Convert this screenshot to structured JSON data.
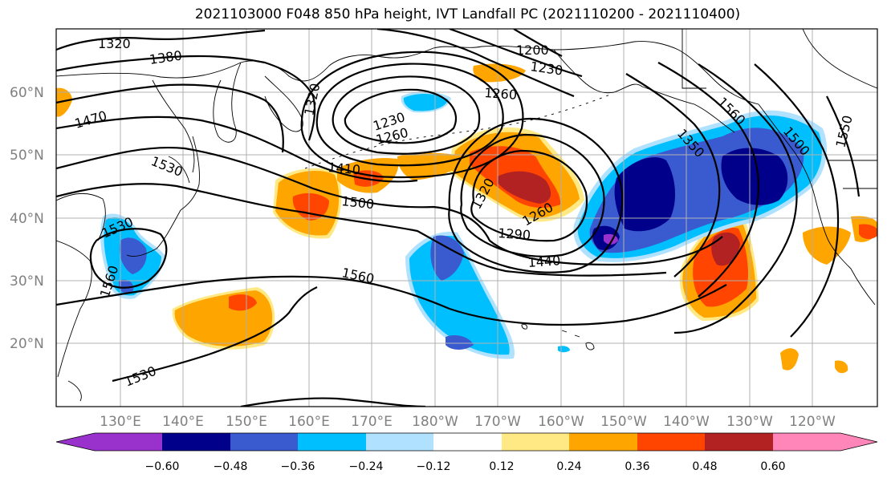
{
  "title": "2021103000 F048 850 hPa height, IVT Landfall PC (2021110200 - 2021110400)",
  "lat_labels": [
    "60°N",
    "50°N",
    "40°N",
    "30°N",
    "20°N"
  ],
  "lon_labels": [
    "130°E",
    "140°E",
    "150°E",
    "160°E",
    "170°E",
    "180°W",
    "170°W",
    "160°W",
    "150°W",
    "140°W",
    "130°W",
    "120°W"
  ],
  "colorbar": {
    "ticks": [
      "−0.60",
      "−0.48",
      "−0.36",
      "−0.24",
      "−0.12",
      "0.12",
      "0.24",
      "0.36",
      "0.48",
      "0.60"
    ],
    "colors": [
      "#9932cc",
      "#00008b",
      "#3a5bd0",
      "#00bfff",
      "#b0e2ff",
      "#ffffff",
      "#ffe985",
      "#ffa500",
      "#ff4500",
      "#b22222",
      "#ff86b8"
    ]
  },
  "contour_labels": [
    "1320",
    "1380",
    "1470",
    "1530",
    "1410",
    "1500",
    "1560",
    "1530",
    "1530",
    "1560",
    "1200",
    "1230",
    "1260",
    "1230",
    "1260",
    "1320",
    "1290",
    "1260",
    "1320",
    "1440",
    "1350",
    "1500",
    "1550",
    "1560"
  ]
}
